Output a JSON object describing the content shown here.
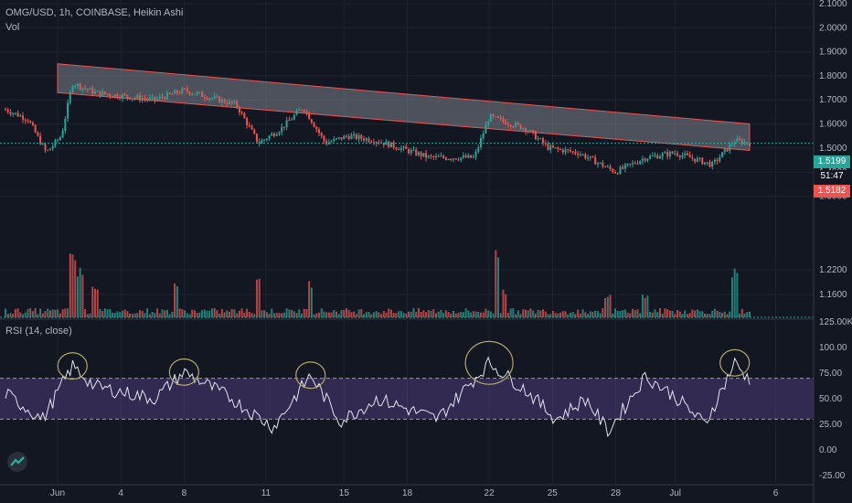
{
  "header": {
    "symbol": "OMG/USD, 1h, COINBASE, Heikin Ashi",
    "vol_label": "Vol",
    "rsi_label": "RSI (14, close)"
  },
  "price_badges": {
    "last": "1.5199",
    "countdown": "51:47",
    "bid": "1.5182"
  },
  "colors": {
    "up": "#26a69a",
    "down": "#ef5350",
    "rsi_line": "#e0e3eb",
    "rsi_band": "#7e57c2",
    "channel_fill": "#9598a1",
    "channel_stroke": "#ef5350",
    "circle": "#b2a86a"
  },
  "chart_data": [
    {
      "type": "candlestick",
      "title": "OMG/USD, 1h, COINBASE, Heikin Ashi",
      "y_ticks": [
        "2.1000",
        "2.0000",
        "1.9000",
        "1.8000",
        "1.7000",
        "1.6000",
        "1.5000",
        "1.4000",
        "1.3000",
        "1.2200",
        "1.1600"
      ],
      "ylim": [
        1.1,
        2.1
      ],
      "x_ticks": [
        "Jun",
        "4",
        "8",
        "11",
        "15",
        "18",
        "22",
        "25",
        "28",
        "Jul",
        "6"
      ],
      "last_price": 1.5199,
      "channel": {
        "upper_start": 1.85,
        "upper_end": 1.6,
        "lower_start": 1.73,
        "lower_end": 1.49
      },
      "key_points": [
        {
          "t": 0,
          "p": 1.66
        },
        {
          "t": 0.03,
          "p": 1.62
        },
        {
          "t": 0.055,
          "p": 1.48
        },
        {
          "t": 0.075,
          "p": 1.55
        },
        {
          "t": 0.09,
          "p": 1.77
        },
        {
          "t": 0.12,
          "p": 1.73
        },
        {
          "t": 0.2,
          "p": 1.7
        },
        {
          "t": 0.24,
          "p": 1.74
        },
        {
          "t": 0.31,
          "p": 1.68
        },
        {
          "t": 0.34,
          "p": 1.52
        },
        {
          "t": 0.37,
          "p": 1.58
        },
        {
          "t": 0.4,
          "p": 1.67
        },
        {
          "t": 0.43,
          "p": 1.52
        },
        {
          "t": 0.46,
          "p": 1.55
        },
        {
          "t": 0.5,
          "p": 1.53
        },
        {
          "t": 0.57,
          "p": 1.46
        },
        {
          "t": 0.63,
          "p": 1.46
        },
        {
          "t": 0.65,
          "p": 1.63
        },
        {
          "t": 0.7,
          "p": 1.58
        },
        {
          "t": 0.73,
          "p": 1.5
        },
        {
          "t": 0.77,
          "p": 1.48
        },
        {
          "t": 0.82,
          "p": 1.4
        },
        {
          "t": 0.86,
          "p": 1.46
        },
        {
          "t": 0.9,
          "p": 1.48
        },
        {
          "t": 0.95,
          "p": 1.43
        },
        {
          "t": 0.98,
          "p": 1.53
        },
        {
          "t": 1.0,
          "p": 1.52
        }
      ]
    },
    {
      "type": "bar",
      "title": "Vol",
      "y_ticks": [
        "125.00K"
      ],
      "spikes": [
        {
          "t": 0.09,
          "v": 0.95
        },
        {
          "t": 0.1,
          "v": 0.7
        },
        {
          "t": 0.12,
          "v": 0.5
        },
        {
          "t": 0.23,
          "v": 0.45
        },
        {
          "t": 0.34,
          "v": 0.6
        },
        {
          "t": 0.41,
          "v": 0.5
        },
        {
          "t": 0.66,
          "v": 0.9
        },
        {
          "t": 0.67,
          "v": 0.4
        },
        {
          "t": 0.81,
          "v": 0.3
        },
        {
          "t": 0.86,
          "v": 0.35
        },
        {
          "t": 0.98,
          "v": 0.65
        }
      ]
    },
    {
      "type": "line",
      "title": "RSI (14, close)",
      "y_ticks": [
        "100.00",
        "75.00",
        "50.00",
        "25.00",
        "0.00",
        "-25.00"
      ],
      "ylim": [
        -25,
        100
      ],
      "bands": [
        30,
        70
      ],
      "key_points": [
        {
          "t": 0,
          "v": 55
        },
        {
          "t": 0.05,
          "v": 30
        },
        {
          "t": 0.09,
          "v": 82
        },
        {
          "t": 0.12,
          "v": 62
        },
        {
          "t": 0.2,
          "v": 50
        },
        {
          "t": 0.24,
          "v": 76
        },
        {
          "t": 0.3,
          "v": 52
        },
        {
          "t": 0.36,
          "v": 22
        },
        {
          "t": 0.41,
          "v": 73
        },
        {
          "t": 0.45,
          "v": 28
        },
        {
          "t": 0.5,
          "v": 50
        },
        {
          "t": 0.58,
          "v": 30
        },
        {
          "t": 0.65,
          "v": 85
        },
        {
          "t": 0.7,
          "v": 58
        },
        {
          "t": 0.74,
          "v": 30
        },
        {
          "t": 0.78,
          "v": 50
        },
        {
          "t": 0.81,
          "v": 18
        },
        {
          "t": 0.86,
          "v": 72
        },
        {
          "t": 0.9,
          "v": 52
        },
        {
          "t": 0.94,
          "v": 25
        },
        {
          "t": 0.98,
          "v": 85
        },
        {
          "t": 1.0,
          "v": 68
        }
      ],
      "circled_peaks": [
        0.09,
        0.24,
        0.41,
        0.65,
        0.98
      ]
    }
  ]
}
